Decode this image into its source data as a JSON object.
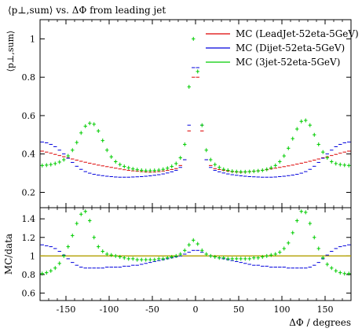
{
  "chart_data": [
    {
      "type": "line",
      "title": "⟨p⊥,sum⟩ vs. ΔΦ from leading jet",
      "ylabel": "⟨p⊥,sum⟩",
      "xlabel": "",
      "xlim": [
        -180,
        180
      ],
      "ylim": [
        0.12,
        1.1
      ],
      "xticks": [
        -150,
        -100,
        -50,
        0,
        50,
        100,
        150
      ],
      "yticks": [
        0.2,
        0.4,
        0.6,
        0.8,
        1
      ],
      "ytick_labels": [
        "0.2",
        "0.4",
        "0.6",
        "0.8",
        "1"
      ],
      "legend_position": "top-right",
      "series": [
        {
          "name": "MC (LeadJet-52eta-5GeV)",
          "color": "#dd0000",
          "x": [
            -177.5,
            -172.5,
            -167.5,
            -162.5,
            -157.5,
            -152.5,
            -147.5,
            -142.5,
            -137.5,
            -132.5,
            -127.5,
            -122.5,
            -117.5,
            -112.5,
            -107.5,
            -102.5,
            -97.5,
            -92.5,
            -87.5,
            -82.5,
            -77.5,
            -72.5,
            -67.5,
            -62.5,
            -57.5,
            -52.5,
            -47.5,
            -42.5,
            -37.5,
            -32.5,
            -27.5,
            -22.5,
            -17.5,
            -12.5,
            -7.5,
            -2.5,
            2.5,
            7.5,
            12.5,
            17.5,
            22.5,
            27.5,
            32.5,
            37.5,
            42.5,
            47.5,
            52.5,
            57.5,
            62.5,
            67.5,
            72.5,
            77.5,
            82.5,
            87.5,
            92.5,
            97.5,
            102.5,
            107.5,
            112.5,
            117.5,
            122.5,
            127.5,
            132.5,
            137.5,
            142.5,
            147.5,
            152.5,
            157.5,
            162.5,
            167.5,
            172.5,
            177.5
          ],
          "values": [
            0.415,
            0.41,
            0.404,
            0.398,
            0.392,
            0.386,
            0.38,
            0.374,
            0.368,
            0.362,
            0.357,
            0.352,
            0.347,
            0.342,
            0.338,
            0.334,
            0.33,
            0.326,
            0.322,
            0.318,
            0.315,
            0.312,
            0.31,
            0.308,
            0.306,
            0.305,
            0.306,
            0.308,
            0.311,
            0.315,
            0.319,
            0.324,
            0.34,
            0.37,
            0.52,
            0.8,
            0.8,
            0.52,
            0.37,
            0.34,
            0.324,
            0.319,
            0.315,
            0.311,
            0.308,
            0.306,
            0.305,
            0.306,
            0.308,
            0.31,
            0.312,
            0.315,
            0.318,
            0.322,
            0.326,
            0.33,
            0.334,
            0.338,
            0.342,
            0.347,
            0.352,
            0.357,
            0.362,
            0.368,
            0.374,
            0.38,
            0.386,
            0.392,
            0.398,
            0.404,
            0.41,
            0.415
          ]
        },
        {
          "name": "MC (Dijet-52eta-5GeV)",
          "color": "#0000dd",
          "x": [
            -177.5,
            -172.5,
            -167.5,
            -162.5,
            -157.5,
            -152.5,
            -147.5,
            -142.5,
            -137.5,
            -132.5,
            -127.5,
            -122.5,
            -117.5,
            -112.5,
            -107.5,
            -102.5,
            -97.5,
            -92.5,
            -87.5,
            -82.5,
            -77.5,
            -72.5,
            -67.5,
            -62.5,
            -57.5,
            -52.5,
            -47.5,
            -42.5,
            -37.5,
            -32.5,
            -27.5,
            -22.5,
            -17.5,
            -12.5,
            -7.5,
            -2.5,
            2.5,
            7.5,
            12.5,
            17.5,
            22.5,
            27.5,
            32.5,
            37.5,
            42.5,
            47.5,
            52.5,
            57.5,
            62.5,
            67.5,
            72.5,
            77.5,
            82.5,
            87.5,
            92.5,
            97.5,
            102.5,
            107.5,
            112.5,
            117.5,
            122.5,
            127.5,
            132.5,
            137.5,
            142.5,
            147.5,
            152.5,
            157.5,
            162.5,
            167.5,
            172.5,
            177.5
          ],
          "values": [
            0.462,
            0.458,
            0.45,
            0.438,
            0.42,
            0.4,
            0.378,
            0.356,
            0.336,
            0.32,
            0.308,
            0.3,
            0.294,
            0.29,
            0.287,
            0.284,
            0.282,
            0.28,
            0.279,
            0.279,
            0.279,
            0.28,
            0.281,
            0.282,
            0.284,
            0.286,
            0.289,
            0.292,
            0.296,
            0.301,
            0.307,
            0.315,
            0.33,
            0.37,
            0.55,
            0.85,
            0.85,
            0.55,
            0.37,
            0.33,
            0.315,
            0.307,
            0.301,
            0.296,
            0.292,
            0.289,
            0.286,
            0.284,
            0.282,
            0.281,
            0.28,
            0.279,
            0.279,
            0.279,
            0.28,
            0.282,
            0.284,
            0.287,
            0.29,
            0.294,
            0.3,
            0.308,
            0.32,
            0.336,
            0.356,
            0.378,
            0.4,
            0.42,
            0.438,
            0.45,
            0.458,
            0.462
          ]
        },
        {
          "name": "MC (3jet-52eta-5GeV)",
          "color": "#00cc00",
          "x": [
            -177.5,
            -172.5,
            -167.5,
            -162.5,
            -157.5,
            -152.5,
            -147.5,
            -142.5,
            -137.5,
            -132.5,
            -127.5,
            -122.5,
            -117.5,
            -112.5,
            -107.5,
            -102.5,
            -97.5,
            -92.5,
            -87.5,
            -82.5,
            -77.5,
            -72.5,
            -67.5,
            -62.5,
            -57.5,
            -52.5,
            -47.5,
            -42.5,
            -37.5,
            -32.5,
            -27.5,
            -22.5,
            -17.5,
            -12.5,
            -7.5,
            -2.5,
            2.5,
            7.5,
            12.5,
            17.5,
            22.5,
            27.5,
            32.5,
            37.5,
            42.5,
            47.5,
            52.5,
            57.5,
            62.5,
            67.5,
            72.5,
            77.5,
            82.5,
            87.5,
            92.5,
            97.5,
            102.5,
            107.5,
            112.5,
            117.5,
            122.5,
            127.5,
            132.5,
            137.5,
            142.5,
            147.5,
            152.5,
            157.5,
            162.5,
            167.5,
            172.5,
            177.5
          ],
          "values": [
            0.34,
            0.342,
            0.345,
            0.35,
            0.358,
            0.37,
            0.39,
            0.42,
            0.46,
            0.51,
            0.545,
            0.56,
            0.555,
            0.52,
            0.47,
            0.42,
            0.385,
            0.36,
            0.345,
            0.335,
            0.328,
            0.322,
            0.318,
            0.315,
            0.313,
            0.313,
            0.314,
            0.316,
            0.32,
            0.326,
            0.335,
            0.35,
            0.38,
            0.45,
            0.75,
            1.0,
            0.83,
            0.55,
            0.42,
            0.37,
            0.345,
            0.33,
            0.32,
            0.315,
            0.31,
            0.308,
            0.307,
            0.307,
            0.308,
            0.31,
            0.312,
            0.315,
            0.32,
            0.328,
            0.34,
            0.36,
            0.39,
            0.43,
            0.48,
            0.53,
            0.57,
            0.575,
            0.55,
            0.5,
            0.45,
            0.41,
            0.38,
            0.36,
            0.35,
            0.345,
            0.342,
            0.34
          ]
        }
      ]
    },
    {
      "type": "line",
      "title": "",
      "ylabel": "MC/data",
      "xlabel": "ΔΦ / degrees",
      "xlim": [
        -180,
        180
      ],
      "ylim": [
        0.52,
        1.52
      ],
      "xticks": [
        -150,
        -100,
        -50,
        0,
        50,
        100,
        150
      ],
      "xtick_labels": [
        "-150",
        "-100",
        "-50",
        "0",
        "50",
        "100",
        "150"
      ],
      "yticks": [
        0.6,
        0.8,
        1,
        1.2,
        1.4
      ],
      "ytick_labels": [
        "0.6",
        "0.8",
        "1",
        "1.2",
        "1.4"
      ],
      "reference_line": 1.0,
      "reference_color": "#b3a000",
      "series": [
        {
          "name": "MC (LeadJet-52eta-5GeV)",
          "color": "#dd0000",
          "x": [
            -180,
            180
          ],
          "values": [
            1.0,
            1.0
          ]
        },
        {
          "name": "MC (Dijet-52eta-5GeV)",
          "color": "#0000dd",
          "x": [
            -177.5,
            -172.5,
            -167.5,
            -162.5,
            -157.5,
            -152.5,
            -147.5,
            -142.5,
            -137.5,
            -132.5,
            -127.5,
            -122.5,
            -117.5,
            -112.5,
            -107.5,
            -102.5,
            -97.5,
            -92.5,
            -87.5,
            -82.5,
            -77.5,
            -72.5,
            -67.5,
            -62.5,
            -57.5,
            -52.5,
            -47.5,
            -42.5,
            -37.5,
            -32.5,
            -27.5,
            -22.5,
            -17.5,
            -12.5,
            -7.5,
            -2.5,
            2.5,
            7.5,
            12.5,
            17.5,
            22.5,
            27.5,
            32.5,
            37.5,
            42.5,
            47.5,
            52.5,
            57.5,
            62.5,
            67.5,
            72.5,
            77.5,
            82.5,
            87.5,
            92.5,
            97.5,
            102.5,
            107.5,
            112.5,
            117.5,
            122.5,
            127.5,
            132.5,
            137.5,
            142.5,
            147.5,
            152.5,
            157.5,
            162.5,
            167.5,
            172.5,
            177.5
          ],
          "values": [
            1.12,
            1.11,
            1.1,
            1.08,
            1.05,
            1.01,
            0.97,
            0.93,
            0.9,
            0.88,
            0.87,
            0.87,
            0.87,
            0.87,
            0.87,
            0.88,
            0.88,
            0.88,
            0.88,
            0.89,
            0.89,
            0.9,
            0.9,
            0.91,
            0.92,
            0.93,
            0.94,
            0.95,
            0.96,
            0.97,
            0.98,
            0.99,
            1.0,
            1.02,
            1.04,
            1.06,
            1.06,
            1.04,
            1.02,
            1.0,
            0.99,
            0.98,
            0.97,
            0.96,
            0.95,
            0.94,
            0.93,
            0.92,
            0.91,
            0.9,
            0.9,
            0.89,
            0.89,
            0.88,
            0.88,
            0.88,
            0.88,
            0.87,
            0.87,
            0.87,
            0.87,
            0.87,
            0.88,
            0.9,
            0.93,
            0.97,
            1.01,
            1.05,
            1.08,
            1.1,
            1.11,
            1.12
          ]
        },
        {
          "name": "MC (3jet-52eta-5GeV)",
          "color": "#00cc00",
          "x": [
            -177.5,
            -172.5,
            -167.5,
            -162.5,
            -157.5,
            -152.5,
            -147.5,
            -142.5,
            -137.5,
            -132.5,
            -127.5,
            -122.5,
            -117.5,
            -112.5,
            -107.5,
            -102.5,
            -97.5,
            -92.5,
            -87.5,
            -82.5,
            -77.5,
            -72.5,
            -67.5,
            -62.5,
            -57.5,
            -52.5,
            -47.5,
            -42.5,
            -37.5,
            -32.5,
            -27.5,
            -22.5,
            -17.5,
            -12.5,
            -7.5,
            -2.5,
            2.5,
            7.5,
            12.5,
            17.5,
            22.5,
            27.5,
            32.5,
            37.5,
            42.5,
            47.5,
            52.5,
            57.5,
            62.5,
            67.5,
            72.5,
            77.5,
            82.5,
            87.5,
            92.5,
            97.5,
            102.5,
            107.5,
            112.5,
            117.5,
            122.5,
            127.5,
            132.5,
            137.5,
            142.5,
            147.5,
            152.5,
            157.5,
            162.5,
            167.5,
            172.5,
            177.5
          ],
          "values": [
            0.81,
            0.82,
            0.84,
            0.87,
            0.92,
            1.0,
            1.1,
            1.22,
            1.35,
            1.45,
            1.48,
            1.38,
            1.2,
            1.1,
            1.05,
            1.02,
            1.01,
            1.0,
            0.99,
            0.98,
            0.97,
            0.97,
            0.96,
            0.96,
            0.96,
            0.96,
            0.96,
            0.97,
            0.97,
            0.98,
            0.99,
            1.0,
            1.02,
            1.06,
            1.12,
            1.17,
            1.13,
            1.06,
            1.02,
            1.0,
            0.99,
            0.98,
            0.98,
            0.97,
            0.97,
            0.97,
            0.97,
            0.97,
            0.97,
            0.98,
            0.98,
            0.99,
            1.0,
            1.01,
            1.02,
            1.04,
            1.08,
            1.14,
            1.25,
            1.38,
            1.48,
            1.47,
            1.35,
            1.2,
            1.08,
            0.98,
            0.91,
            0.87,
            0.84,
            0.82,
            0.81,
            0.81
          ]
        }
      ]
    }
  ]
}
